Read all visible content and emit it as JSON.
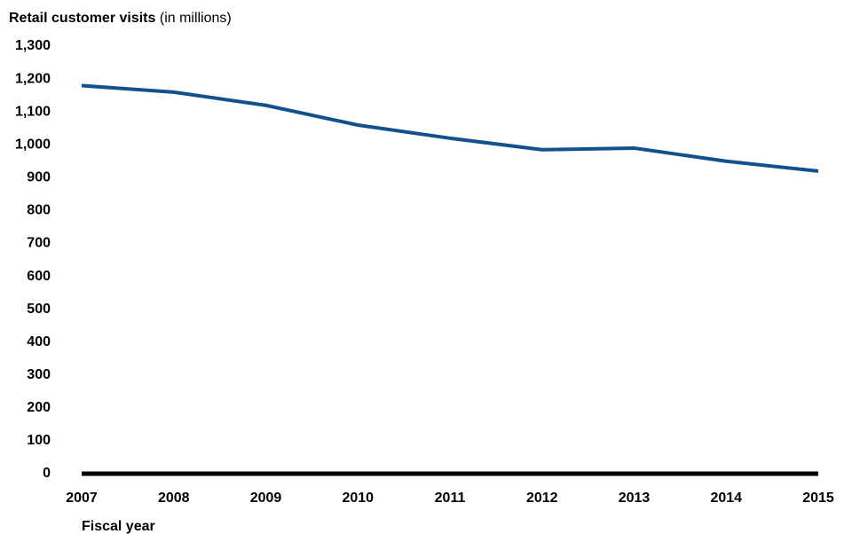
{
  "chart_data": {
    "type": "line",
    "title": "Retail customer visits",
    "subtitle": "(in millions)",
    "x_label": "Fiscal year",
    "categories": [
      "2007",
      "2008",
      "2009",
      "2010",
      "2011",
      "2012",
      "2013",
      "2014",
      "2015"
    ],
    "series": [
      {
        "name": "Retail customer visits",
        "color": "#13508e",
        "values": [
          1180,
          1160,
          1120,
          1060,
          1020,
          985,
          990,
          950,
          920
        ]
      }
    ],
    "ylim": [
      0,
      1300
    ],
    "yticks": [
      0,
      100,
      200,
      300,
      400,
      500,
      600,
      700,
      800,
      900,
      {
        "value": 1000,
        "label": "1,000"
      },
      {
        "value": 1100,
        "label": "1,100"
      },
      {
        "value": 1200,
        "label": "1,200"
      },
      {
        "value": 1300,
        "label": "1,300"
      }
    ],
    "grid": false,
    "legend": false
  }
}
